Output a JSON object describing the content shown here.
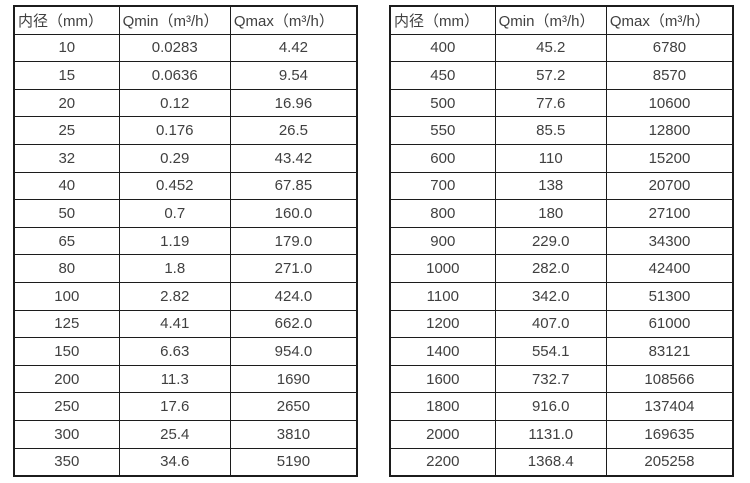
{
  "colors": {
    "text": "#404040",
    "border": "#1c1c1c",
    "background": "#ffffff"
  },
  "tables": [
    {
      "name": "flow-rate-table-small-diameters",
      "headers": [
        "内径（mm）",
        "Qmin（m³/h）",
        "Qmax（m³/h）"
      ],
      "rows": [
        [
          "10",
          "0.0283",
          "4.42"
        ],
        [
          "15",
          "0.0636",
          "9.54"
        ],
        [
          "20",
          "0.12",
          "16.96"
        ],
        [
          "25",
          "0.176",
          "26.5"
        ],
        [
          "32",
          "0.29",
          "43.42"
        ],
        [
          "40",
          "0.452",
          "67.85"
        ],
        [
          "50",
          "0.7",
          "160.0"
        ],
        [
          "65",
          "1.19",
          "179.0"
        ],
        [
          "80",
          "1.8",
          "271.0"
        ],
        [
          "100",
          "2.82",
          "424.0"
        ],
        [
          "125",
          "4.41",
          "662.0"
        ],
        [
          "150",
          "6.63",
          "954.0"
        ],
        [
          "200",
          "11.3",
          "1690"
        ],
        [
          "250",
          "17.6",
          "2650"
        ],
        [
          "300",
          "25.4",
          "3810"
        ],
        [
          "350",
          "34.6",
          "5190"
        ]
      ]
    },
    {
      "name": "flow-rate-table-large-diameters",
      "headers": [
        "内径（mm）",
        "Qmin（m³/h）",
        "Qmax（m³/h）"
      ],
      "rows": [
        [
          "400",
          "45.2",
          "6780"
        ],
        [
          "450",
          "57.2",
          "8570"
        ],
        [
          "500",
          "77.6",
          "10600"
        ],
        [
          "550",
          "85.5",
          "12800"
        ],
        [
          "600",
          "110",
          "15200"
        ],
        [
          "700",
          "138",
          "20700"
        ],
        [
          "800",
          "180",
          "27100"
        ],
        [
          "900",
          "229.0",
          "34300"
        ],
        [
          "1000",
          "282.0",
          "42400"
        ],
        [
          "1100",
          "342.0",
          "51300"
        ],
        [
          "1200",
          "407.0",
          "61000"
        ],
        [
          "1400",
          "554.1",
          "83121"
        ],
        [
          "1600",
          "732.7",
          "108566"
        ],
        [
          "1800",
          "916.0",
          "137404"
        ],
        [
          "2000",
          "1131.0",
          "169635"
        ],
        [
          "2200",
          "1368.4",
          "205258"
        ]
      ]
    }
  ]
}
